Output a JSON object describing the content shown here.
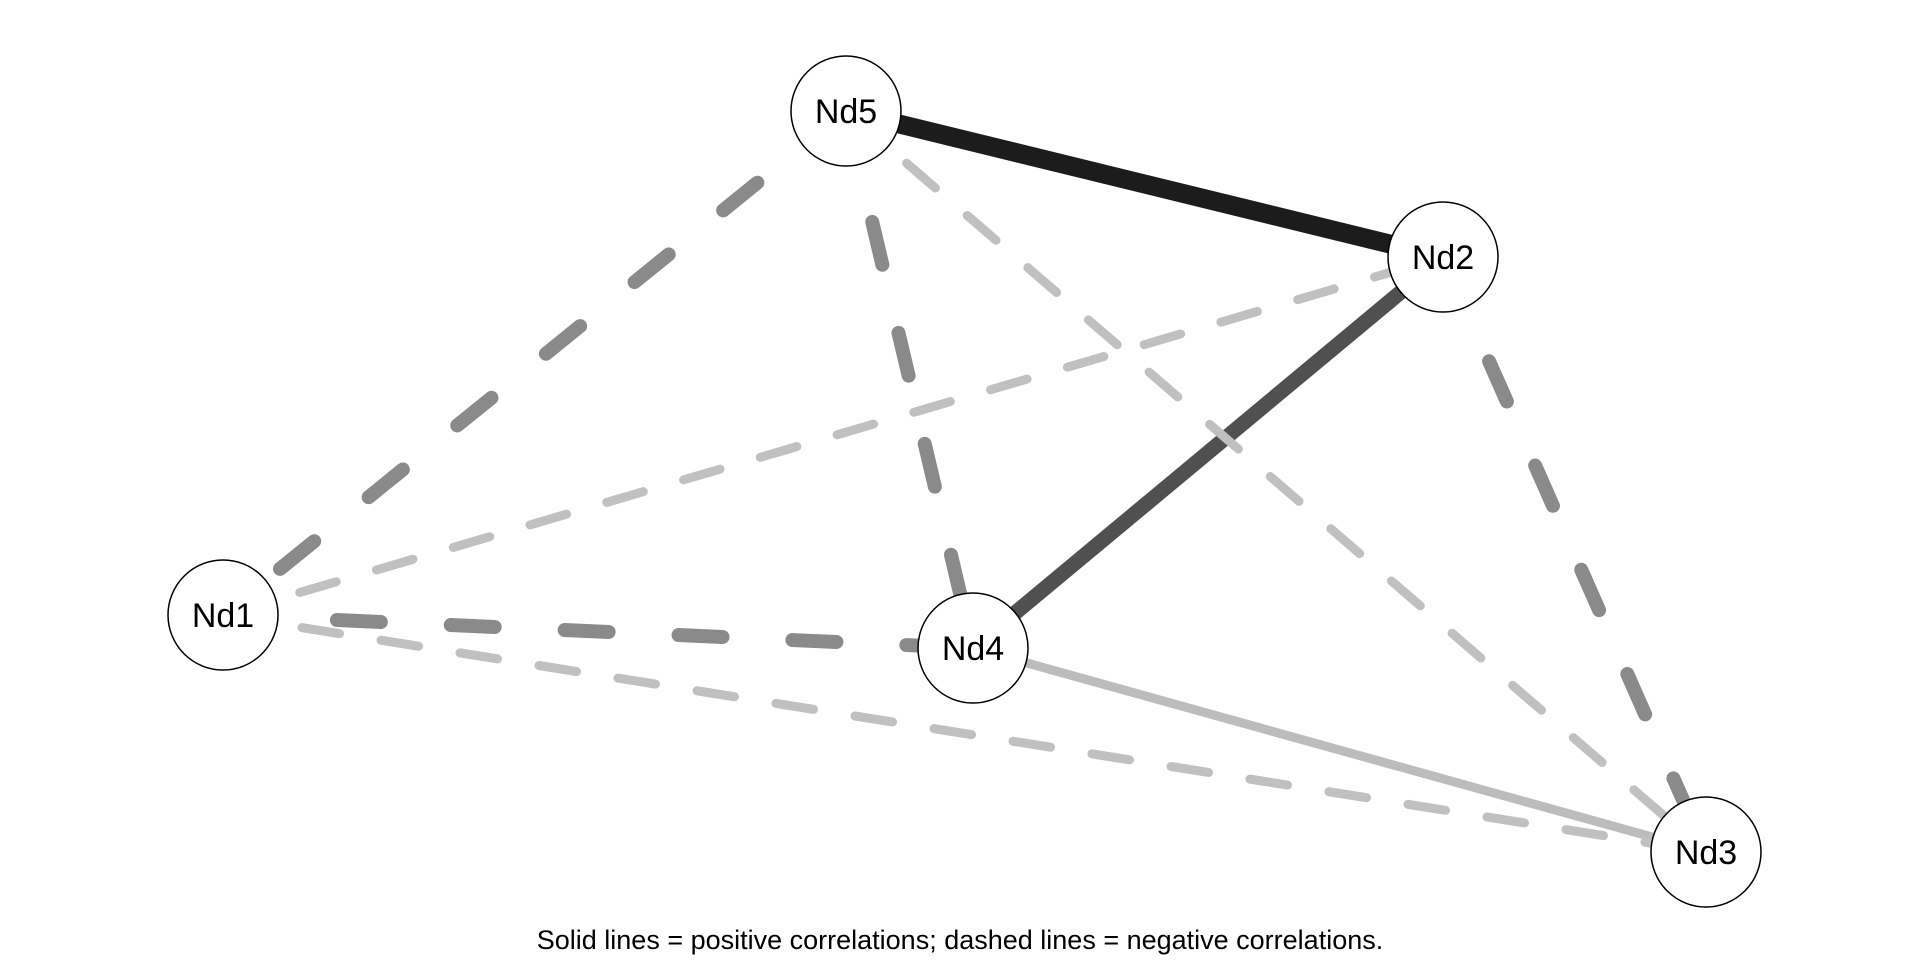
{
  "caption": "Solid lines = positive correlations; dashed lines = negative correlations.",
  "colors": {
    "background": "#ffffff",
    "node_fill": "#ffffff",
    "node_stroke": "#000000"
  },
  "nodes": [
    {
      "id": "Nd1",
      "label": "Nd1"
    },
    {
      "id": "Nd2",
      "label": "Nd2"
    },
    {
      "id": "Nd3",
      "label": "Nd3"
    },
    {
      "id": "Nd4",
      "label": "Nd4"
    },
    {
      "id": "Nd5",
      "label": "Nd5"
    }
  ],
  "edges": [
    {
      "from": "Nd5",
      "to": "Nd2",
      "sign": "positive",
      "strength": "very strong",
      "color": "#1c1c1c"
    },
    {
      "from": "Nd2",
      "to": "Nd4",
      "sign": "positive",
      "strength": "strong",
      "color": "#505050"
    },
    {
      "from": "Nd4",
      "to": "Nd3",
      "sign": "positive",
      "strength": "weak",
      "color": "#bcbcbc"
    },
    {
      "from": "Nd5",
      "to": "Nd1",
      "sign": "negative",
      "strength": "moderate",
      "color": "#8a8a8a"
    },
    {
      "from": "Nd5",
      "to": "Nd4",
      "sign": "negative",
      "strength": "moderate",
      "color": "#8a8a8a"
    },
    {
      "from": "Nd2",
      "to": "Nd3",
      "sign": "negative",
      "strength": "moderate",
      "color": "#8a8a8a"
    },
    {
      "from": "Nd1",
      "to": "Nd4",
      "sign": "negative",
      "strength": "moderate",
      "color": "#8a8a8a"
    },
    {
      "from": "Nd5",
      "to": "Nd3",
      "sign": "negative",
      "strength": "weak",
      "color": "#c0c0c0"
    },
    {
      "from": "Nd1",
      "to": "Nd2",
      "sign": "negative",
      "strength": "weak",
      "color": "#c0c0c0"
    },
    {
      "from": "Nd1",
      "to": "Nd3",
      "sign": "negative",
      "strength": "weak",
      "color": "#c0c0c0"
    }
  ]
}
